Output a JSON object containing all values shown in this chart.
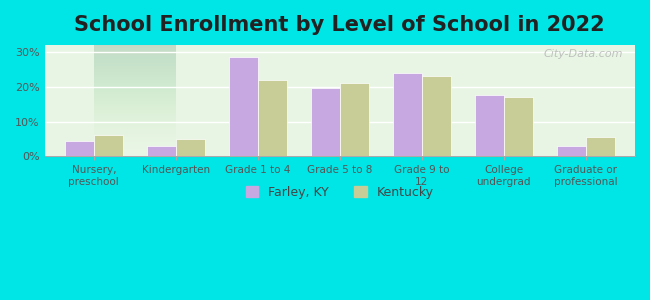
{
  "title": "School Enrollment by Level of School in 2022",
  "categories": [
    "Nursery,\npreschool",
    "Kindergarten",
    "Grade 1 to 4",
    "Grade 5 to 8",
    "Grade 9 to\n12",
    "College\nundergrad",
    "Graduate or\nprofessional"
  ],
  "farley_values": [
    4.5,
    3.0,
    28.5,
    19.5,
    24.0,
    17.5,
    3.0
  ],
  "kentucky_values": [
    6.0,
    5.0,
    22.0,
    21.0,
    23.0,
    17.0,
    5.5
  ],
  "farley_color": "#c8a8e0",
  "kentucky_color": "#c8cc96",
  "background_outer": "#00e5e5",
  "background_inner_top": "#e8f5e0",
  "background_inner_bottom": "#f0ffe8",
  "ylim": [
    0,
    32
  ],
  "yticks": [
    0,
    10,
    20,
    30
  ],
  "ytick_labels": [
    "0%",
    "10%",
    "20%",
    "30%"
  ],
  "legend_labels": [
    "Farley, KY",
    "Kentucky"
  ],
  "title_fontsize": 15,
  "axis_label_fontsize": 8,
  "watermark": "City-Data.com"
}
